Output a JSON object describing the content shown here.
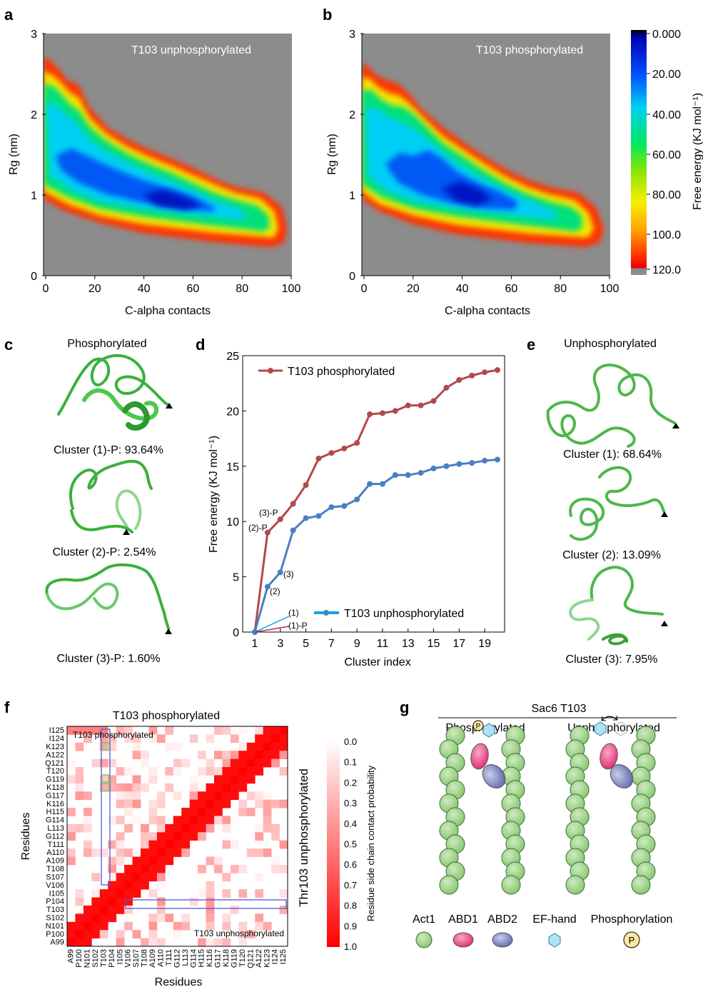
{
  "panel_labels": {
    "a": "a",
    "b": "b",
    "c": "c",
    "d": "d",
    "e": "e",
    "f": "f",
    "g": "g"
  },
  "panel_a": {
    "inset": "T103 unphosphorylated",
    "xlabel": "C-alpha contacts",
    "ylabel": "Rg (nm)",
    "xticks": [
      "0",
      "20",
      "40",
      "60",
      "80",
      "100"
    ],
    "yticks": [
      "0",
      "1",
      "2",
      "3"
    ]
  },
  "panel_b": {
    "inset": "T103 phosphorylated",
    "xlabel": "C-alpha contacts",
    "ylabel": "Rg (nm)",
    "xticks": [
      "0",
      "20",
      "40",
      "60",
      "80",
      "100"
    ],
    "yticks": [
      "0",
      "1",
      "2",
      "3"
    ]
  },
  "colorbar_ab": {
    "label": "Free energy (KJ mol⁻¹)",
    "ticks": [
      "0.000",
      "20.00",
      "40.00",
      "60.00",
      "80.00",
      "100.0",
      "120.0"
    ],
    "colors": {
      "c0": "#000000",
      "c1": "#0000c8",
      "c2": "#0064ff",
      "c3": "#00dcf0",
      "c4": "#00e664",
      "c5": "#78e600",
      "c6": "#f0f000",
      "c7": "#ffa000",
      "c8": "#ff3c00",
      "c9": "#e60000",
      "c10": "#8c8c8c"
    }
  },
  "panel_c": {
    "title": "Phosphorylated",
    "clusters": [
      "Cluster (1)-P: 93.64%",
      "Cluster (2)-P: 2.54%",
      "Cluster (3)-P: 1.60%"
    ]
  },
  "panel_e": {
    "title": "Unphosphorylated",
    "clusters": [
      "Cluster (1): 68.64%",
      "Cluster (2): 13.09%",
      "Cluster (3): 7.95%"
    ]
  },
  "chart_data": [
    {
      "type": "line",
      "id": "d",
      "xlabel": "Cluster index",
      "ylabel": "Free energy (KJ mol⁻¹)",
      "xlim": [
        1,
        20
      ],
      "ylim": [
        0,
        25
      ],
      "xticks": [
        "1",
        "3",
        "5",
        "7",
        "9",
        "11",
        "13",
        "15",
        "17",
        "19"
      ],
      "yticks": [
        "0",
        "5",
        "10",
        "15",
        "20",
        "25"
      ],
      "x": [
        1,
        2,
        3,
        4,
        5,
        6,
        7,
        8,
        9,
        10,
        11,
        12,
        13,
        14,
        15,
        16,
        17,
        18,
        19,
        20
      ],
      "series": [
        {
          "name": "T103 phosphorylated",
          "color": "#b5484a",
          "values": [
            0,
            9.0,
            10.2,
            11.6,
            13.3,
            15.7,
            16.2,
            16.6,
            17.1,
            19.7,
            19.8,
            20.0,
            20.5,
            20.5,
            20.9,
            22.1,
            22.8,
            23.2,
            23.5,
            23.7
          ]
        },
        {
          "name": "T103 unphosphorylated",
          "color": "#4a7fc1",
          "values": [
            0,
            4.1,
            5.4,
            9.2,
            10.3,
            10.5,
            11.3,
            11.4,
            12.0,
            13.4,
            13.4,
            14.2,
            14.2,
            14.4,
            14.8,
            15.0,
            15.2,
            15.3,
            15.5,
            15.6
          ]
        }
      ],
      "annotations": {
        "p2": "(2)-P",
        "p3": "(3)-P",
        "u2": "(2)",
        "u3": "(3)",
        "u1": "(1)",
        "p1": "(1)-P"
      }
    },
    {
      "type": "heatmap",
      "id": "f",
      "title": "T103 phosphorylated",
      "residues": [
        "A99",
        "P100",
        "N101",
        "S102",
        "T103",
        "P104",
        "I105",
        "V106",
        "S107",
        "T108",
        "A109",
        "A110",
        "T111",
        "G112",
        "L113",
        "G114",
        "H115",
        "K116",
        "G117",
        "K118",
        "G119",
        "T120",
        "Q121",
        "A122",
        "K123",
        "I124",
        "I125"
      ],
      "xlabel": "Residues",
      "ylabel": "Residues",
      "right_label": "Thr103 unphosphorylated",
      "inset_top": "T103 phosphorylated",
      "inset_bottom": "T103 unphosphorylated",
      "colorbar_label": "Residue side chain contact probability",
      "colorbar_ticks": [
        "0.0",
        "0.1",
        "0.2",
        "0.3",
        "0.4",
        "0.5",
        "0.6",
        "0.7",
        "0.8",
        "0.9",
        "1.0"
      ],
      "highlight_color": "#4c5bd4",
      "green_color": "#7bc96f"
    }
  ],
  "panel_g": {
    "title": "Sac6 T103",
    "left": "Phosphorylated",
    "right": "Unphosphorylated",
    "p": "P",
    "legend": [
      "Act1",
      "ABD1",
      "ABD2",
      "EF-hand",
      "Phosphorylation"
    ],
    "colors": {
      "act1": "#9fd285",
      "abd1": "#e84a87",
      "abd2": "#7c86c0",
      "efhand": "#aee2f5",
      "phos": "#fbe9a0"
    }
  }
}
